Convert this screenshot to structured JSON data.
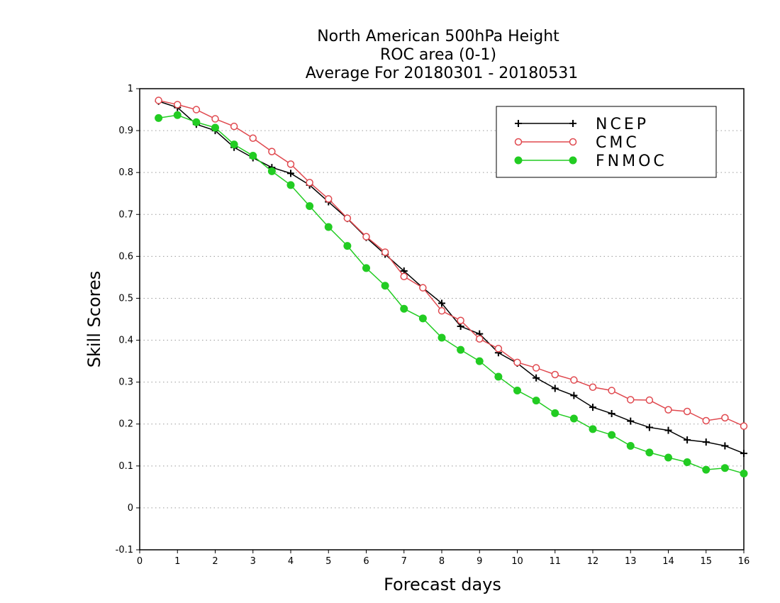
{
  "chart_data": {
    "type": "line",
    "title_lines": [
      "North American 500hPa Height",
      "ROC area (0-1)",
      "Average For 20180301 - 20180531"
    ],
    "xlabel": "Forecast days",
    "ylabel": "Skill Scores",
    "xlim": [
      0,
      16
    ],
    "ylim": [
      -0.1,
      1
    ],
    "xticks": [
      0,
      1,
      2,
      3,
      4,
      5,
      6,
      7,
      8,
      9,
      10,
      11,
      12,
      13,
      14,
      15,
      16
    ],
    "xtick_labels": [
      "0",
      "1",
      "2",
      "3",
      "4",
      "5",
      "6",
      "7",
      "8",
      "9",
      "10",
      "11",
      "12",
      "13",
      "14",
      "15",
      "16"
    ],
    "yticks": [
      -0.1,
      0,
      0.1,
      0.2,
      0.3,
      0.4,
      0.5,
      0.6,
      0.7,
      0.8,
      0.9,
      1
    ],
    "ytick_labels": [
      "-0.1",
      "0",
      "0.1",
      "0.2",
      "0.3",
      "0.4",
      "0.5",
      "0.6",
      "0.7",
      "0.8",
      "0.9",
      "1"
    ],
    "grid": "horizontal dotted",
    "legend_position": "top-right",
    "x": [
      0.5,
      1,
      1.5,
      2,
      2.5,
      3,
      3.5,
      4,
      4.5,
      5,
      5.5,
      6,
      6.5,
      7,
      7.5,
      8,
      8.5,
      9,
      9.5,
      10,
      10.5,
      11,
      11.5,
      12,
      12.5,
      13,
      13.5,
      14,
      14.5,
      15,
      15.5,
      16
    ],
    "series": [
      {
        "name": "NCEP",
        "color": "#000000",
        "marker": "plus",
        "values": [
          0.97,
          0.955,
          0.915,
          0.9,
          0.86,
          0.835,
          0.812,
          0.798,
          0.77,
          0.73,
          0.69,
          0.645,
          0.605,
          0.565,
          0.525,
          0.488,
          0.433,
          0.415,
          0.37,
          0.345,
          0.31,
          0.285,
          0.268,
          0.24,
          0.225,
          0.207,
          0.192,
          0.185,
          0.162,
          0.157,
          0.148,
          0.13
        ]
      },
      {
        "name": "CMC",
        "color": "#e0494f",
        "marker": "open-circle",
        "values": [
          0.972,
          0.962,
          0.95,
          0.928,
          0.91,
          0.882,
          0.85,
          0.82,
          0.776,
          0.737,
          0.691,
          0.647,
          0.61,
          0.552,
          0.525,
          0.47,
          0.447,
          0.403,
          0.38,
          0.347,
          0.334,
          0.318,
          0.305,
          0.288,
          0.28,
          0.258,
          0.257,
          0.234,
          0.23,
          0.208,
          0.215,
          0.195
        ]
      },
      {
        "name": "FNMOC",
        "color": "#22cc22",
        "marker": "filled-circle",
        "values": [
          0.93,
          0.937,
          0.92,
          0.907,
          0.867,
          0.84,
          0.803,
          0.77,
          0.72,
          0.67,
          0.625,
          0.572,
          0.53,
          0.475,
          0.452,
          0.406,
          0.377,
          0.35,
          0.313,
          0.28,
          0.256,
          0.226,
          0.213,
          0.188,
          0.174,
          0.148,
          0.132,
          0.12,
          0.109,
          0.091,
          0.095,
          0.082
        ]
      }
    ]
  }
}
